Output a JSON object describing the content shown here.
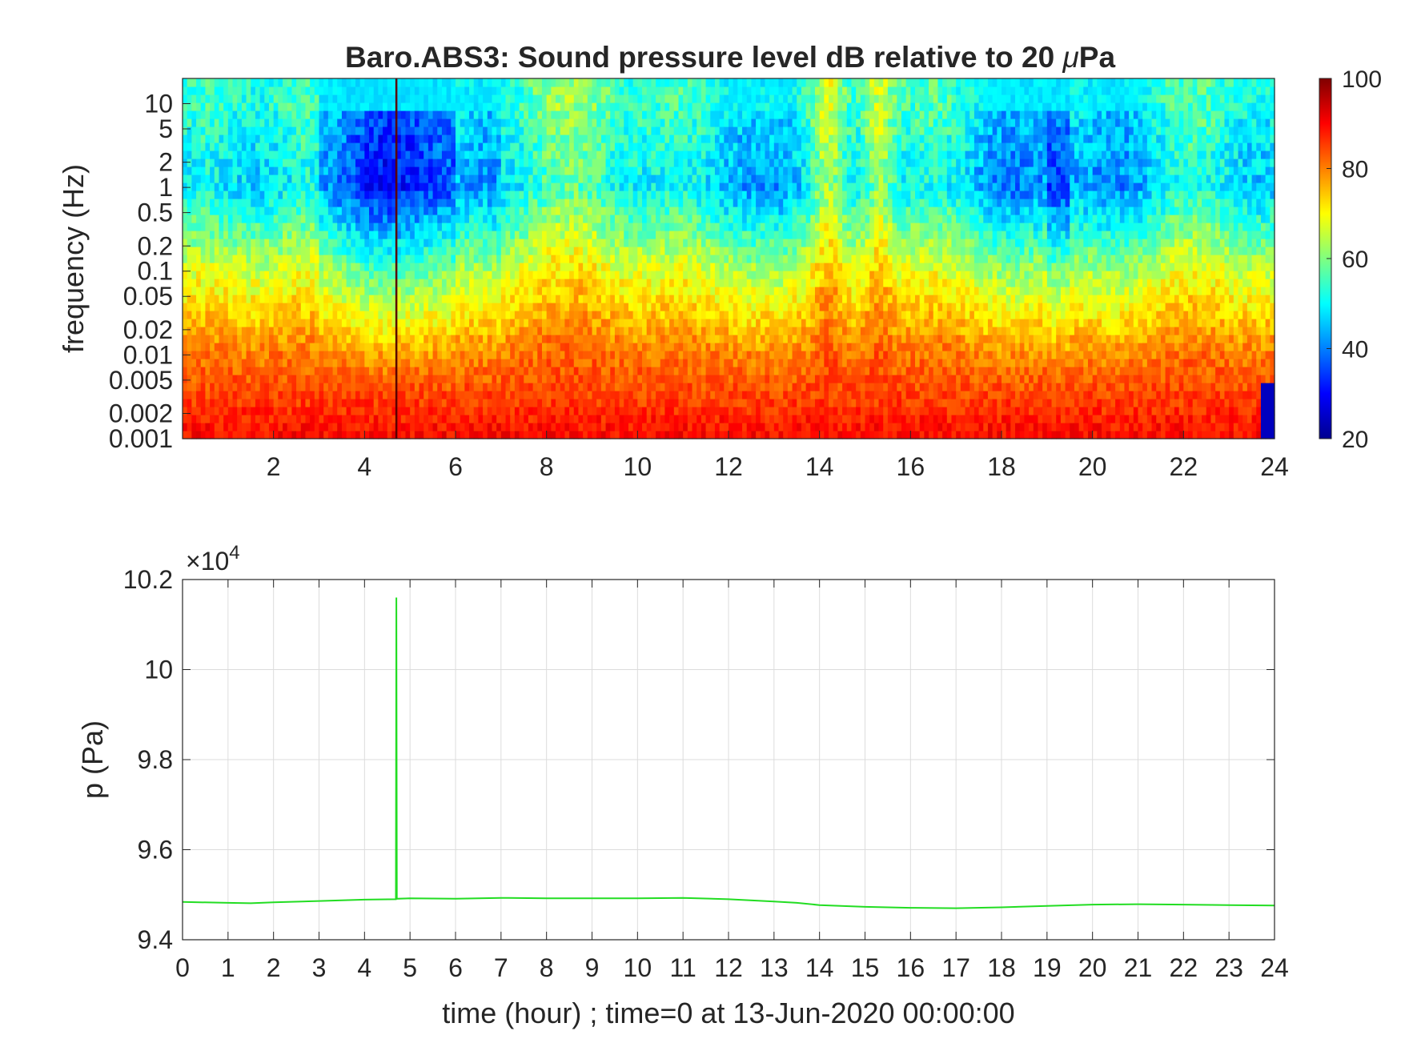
{
  "chart_data": [
    {
      "type": "heatmap",
      "title_parts": {
        "prefix": "Baro.ABS3: Sound pressure level dB relative to 20 ",
        "mu": "μ",
        "suffix": "Pa"
      },
      "ylabel": "frequency (Hz)",
      "xlabel": "",
      "y_scale": "log",
      "xlim": [
        0,
        24
      ],
      "ylim": [
        0.001,
        20
      ],
      "xticks": [
        2,
        4,
        6,
        8,
        10,
        12,
        14,
        16,
        18,
        20,
        22,
        24
      ],
      "xtick_labels": [
        "2",
        "4",
        "6",
        "8",
        "10",
        "12",
        "14",
        "16",
        "18",
        "20",
        "22",
        "24"
      ],
      "yticks": [
        0.001,
        0.002,
        0.005,
        0.01,
        0.02,
        0.05,
        0.1,
        0.2,
        0.5,
        1,
        2,
        5,
        10
      ],
      "ytick_labels": [
        "0.001",
        "0.002",
        "0.005",
        "0.01",
        "0.02",
        "0.05",
        "0.1",
        "0.2",
        "0.5",
        "1",
        "2",
        "5",
        "10"
      ],
      "colorbar": {
        "colormap": "jet",
        "range": [
          20,
          100
        ],
        "ticks": [
          20,
          40,
          60,
          80,
          100
        ],
        "tick_labels": [
          "20",
          "40",
          "60",
          "80",
          "100"
        ]
      },
      "features": {
        "spike_time_hour": 4.7,
        "broadband_peaks_hour": [
          14.2,
          15.3
        ],
        "quiet_hours": [
          [
            3.0,
            6.0
          ],
          [
            19.0,
            19.5
          ]
        ],
        "level_db_at_0.001Hz": 90,
        "level_db_at_0.01Hz": 80,
        "level_db_at_0.1Hz": 65,
        "level_db_at_1Hz": 45,
        "level_db_at_10Hz": 50
      }
    },
    {
      "type": "line",
      "ylabel": "p (Pa)",
      "xlabel": "time (hour) ; time=0 at 13-Jun-2020 00:00:00",
      "y_multiplier": "×10",
      "y_multiplier_exp": "4",
      "xlim": [
        0,
        24
      ],
      "ylim": [
        9.4,
        10.2
      ],
      "grid": true,
      "xticks": [
        0,
        1,
        2,
        3,
        4,
        5,
        6,
        7,
        8,
        9,
        10,
        11,
        12,
        13,
        14,
        15,
        16,
        17,
        18,
        19,
        20,
        21,
        22,
        23,
        24
      ],
      "xtick_labels": [
        "0",
        "1",
        "2",
        "3",
        "4",
        "5",
        "6",
        "7",
        "8",
        "9",
        "10",
        "11",
        "12",
        "13",
        "14",
        "15",
        "16",
        "17",
        "18",
        "19",
        "20",
        "21",
        "22",
        "23",
        "24"
      ],
      "yticks": [
        9.4,
        9.6,
        9.8,
        10,
        10.2
      ],
      "ytick_labels": [
        "9.4",
        "9.6",
        "9.8",
        "10",
        "10.2"
      ],
      "series": [
        {
          "color": "#22dd22",
          "x": [
            0,
            1,
            1.5,
            2,
            3,
            4,
            4.69,
            4.7,
            4.71,
            5,
            6,
            7,
            8,
            9,
            10,
            11,
            12,
            13,
            13.5,
            14,
            15,
            16,
            17,
            18,
            19,
            20,
            21,
            22,
            23,
            24
          ],
          "y": [
            9.484,
            9.482,
            9.481,
            9.483,
            9.486,
            9.489,
            9.49,
            10.16,
            9.491,
            9.492,
            9.491,
            9.493,
            9.492,
            9.492,
            9.492,
            9.493,
            9.49,
            9.485,
            9.482,
            9.477,
            9.473,
            9.471,
            9.47,
            9.472,
            9.475,
            9.478,
            9.479,
            9.478,
            9.477,
            9.476
          ]
        }
      ]
    }
  ]
}
